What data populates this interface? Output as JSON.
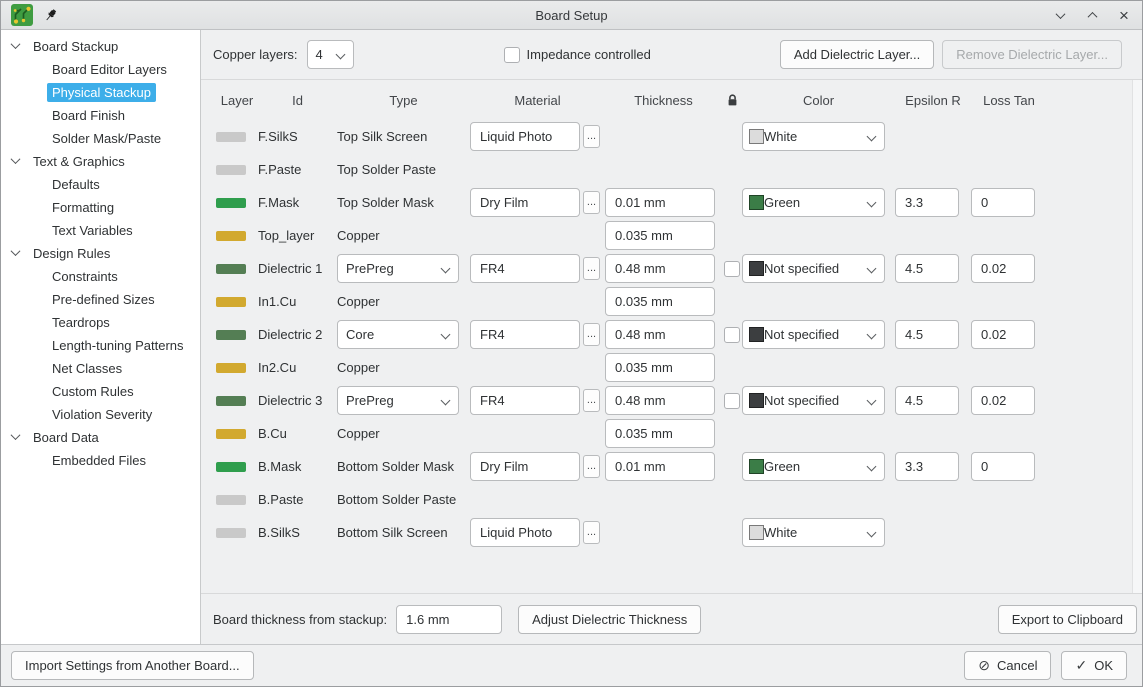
{
  "window": {
    "title": "Board Setup"
  },
  "sidebar": {
    "items": [
      {
        "label": "Board Stackup",
        "level": 0,
        "selected": false
      },
      {
        "label": "Board Editor Layers",
        "level": 1,
        "selected": false
      },
      {
        "label": "Physical Stackup",
        "level": 1,
        "selected": true
      },
      {
        "label": "Board Finish",
        "level": 1,
        "selected": false
      },
      {
        "label": "Solder Mask/Paste",
        "level": 1,
        "selected": false
      },
      {
        "label": "Text & Graphics",
        "level": 0,
        "selected": false
      },
      {
        "label": "Defaults",
        "level": 1,
        "selected": false
      },
      {
        "label": "Formatting",
        "level": 1,
        "selected": false
      },
      {
        "label": "Text Variables",
        "level": 1,
        "selected": false
      },
      {
        "label": "Design Rules",
        "level": 0,
        "selected": false
      },
      {
        "label": "Constraints",
        "level": 1,
        "selected": false
      },
      {
        "label": "Pre-defined Sizes",
        "level": 1,
        "selected": false
      },
      {
        "label": "Teardrops",
        "level": 1,
        "selected": false
      },
      {
        "label": "Length-tuning Patterns",
        "level": 1,
        "selected": false
      },
      {
        "label": "Net Classes",
        "level": 1,
        "selected": false
      },
      {
        "label": "Custom Rules",
        "level": 1,
        "selected": false
      },
      {
        "label": "Violation Severity",
        "level": 1,
        "selected": false
      },
      {
        "label": "Board Data",
        "level": 0,
        "selected": false
      },
      {
        "label": "Embedded Files",
        "level": 1,
        "selected": false
      }
    ]
  },
  "toolbar": {
    "copper_layers_label": "Copper layers:",
    "copper_layers_value": "4",
    "impedance_label": "Impedance controlled",
    "impedance_checked": false,
    "add_dielectric_label": "Add Dielectric Layer...",
    "remove_dielectric_label": "Remove Dielectric Layer...",
    "remove_dielectric_enabled": false
  },
  "table": {
    "browse_label": "...",
    "headers": {
      "layer": "Layer",
      "id": "Id",
      "type": "Type",
      "material": "Material",
      "thickness": "Thickness",
      "color": "Color",
      "epsilon": "Epsilon R",
      "loss_tan": "Loss Tan"
    },
    "rows": [
      {
        "id": "F.SilkS",
        "swatch": "#c9c9c9",
        "type": "Top Silk Screen",
        "type_dropdown": false,
        "material": "Liquid Photo",
        "thickness": null,
        "thickness_locked": null,
        "color": {
          "label": "White",
          "swatch": "#dcdcdc"
        },
        "epsilon": null,
        "loss_tan": null
      },
      {
        "id": "F.Paste",
        "swatch": "#c9c9c9",
        "type": "Top Solder Paste",
        "type_dropdown": false,
        "material": null,
        "thickness": null,
        "thickness_locked": null,
        "color": null,
        "epsilon": null,
        "loss_tan": null
      },
      {
        "id": "F.Mask",
        "swatch": "#2f9e4d",
        "type": "Top Solder Mask",
        "type_dropdown": false,
        "material": "Dry Film",
        "thickness": "0.01 mm",
        "thickness_locked": null,
        "color": {
          "label": "Green",
          "swatch": "#3b7d47"
        },
        "epsilon": "3.3",
        "loss_tan": "0"
      },
      {
        "id": "Top_layer",
        "swatch": "#d2a92f",
        "type": "Copper",
        "type_dropdown": false,
        "material": null,
        "thickness": "0.035 mm",
        "thickness_locked": null,
        "color": null,
        "epsilon": null,
        "loss_tan": null
      },
      {
        "id": "Dielectric 1",
        "swatch": "#547e54",
        "type": "PrePreg",
        "type_dropdown": true,
        "material": "FR4",
        "thickness": "0.48 mm",
        "thickness_locked": false,
        "color": {
          "label": "Not specified",
          "swatch": "#3c3e40"
        },
        "epsilon": "4.5",
        "loss_tan": "0.02"
      },
      {
        "id": "In1.Cu",
        "swatch": "#d2a92f",
        "type": "Copper",
        "type_dropdown": false,
        "material": null,
        "thickness": "0.035 mm",
        "thickness_locked": null,
        "color": null,
        "epsilon": null,
        "loss_tan": null
      },
      {
        "id": "Dielectric 2",
        "swatch": "#547e54",
        "type": "Core",
        "type_dropdown": true,
        "material": "FR4",
        "thickness": "0.48 mm",
        "thickness_locked": false,
        "color": {
          "label": "Not specified",
          "swatch": "#3c3e40"
        },
        "epsilon": "4.5",
        "loss_tan": "0.02"
      },
      {
        "id": "In2.Cu",
        "swatch": "#d2a92f",
        "type": "Copper",
        "type_dropdown": false,
        "material": null,
        "thickness": "0.035 mm",
        "thickness_locked": null,
        "color": null,
        "epsilon": null,
        "loss_tan": null
      },
      {
        "id": "Dielectric 3",
        "swatch": "#547e54",
        "type": "PrePreg",
        "type_dropdown": true,
        "material": "FR4",
        "thickness": "0.48 mm",
        "thickness_locked": false,
        "color": {
          "label": "Not specified",
          "swatch": "#3c3e40"
        },
        "epsilon": "4.5",
        "loss_tan": "0.02"
      },
      {
        "id": "B.Cu",
        "swatch": "#d2a92f",
        "type": "Copper",
        "type_dropdown": false,
        "material": null,
        "thickness": "0.035 mm",
        "thickness_locked": null,
        "color": null,
        "epsilon": null,
        "loss_tan": null
      },
      {
        "id": "B.Mask",
        "swatch": "#2f9e4d",
        "type": "Bottom Solder Mask",
        "type_dropdown": false,
        "material": "Dry Film",
        "thickness": "0.01 mm",
        "thickness_locked": null,
        "color": {
          "label": "Green",
          "swatch": "#3b7d47"
        },
        "epsilon": "3.3",
        "loss_tan": "0"
      },
      {
        "id": "B.Paste",
        "swatch": "#c9c9c9",
        "type": "Bottom Solder Paste",
        "type_dropdown": false,
        "material": null,
        "thickness": null,
        "thickness_locked": null,
        "color": null,
        "epsilon": null,
        "loss_tan": null
      },
      {
        "id": "B.SilkS",
        "swatch": "#c9c9c9",
        "type": "Bottom Silk Screen",
        "type_dropdown": false,
        "material": "Liquid Photo",
        "thickness": null,
        "thickness_locked": null,
        "color": {
          "label": "White",
          "swatch": "#dcdcdc"
        },
        "epsilon": null,
        "loss_tan": null
      }
    ]
  },
  "footer": {
    "thickness_label": "Board thickness from stackup:",
    "thickness_value": "1.6 mm",
    "adjust_button": "Adjust Dielectric Thickness",
    "export_button": "Export to Clipboard"
  },
  "dialog_buttons": {
    "import_button": "Import Settings from Another Board...",
    "cancel_button": "Cancel",
    "ok_button": "OK"
  },
  "icons": {
    "cancel": "⊘",
    "ok": "✓",
    "close": "×"
  },
  "colors": {
    "accent": "#3daee9",
    "copper": "#d2a92f",
    "solder_mask_green": "#2f9e4d",
    "dielectric_green": "#547e54",
    "silk_gray": "#c9c9c9"
  }
}
